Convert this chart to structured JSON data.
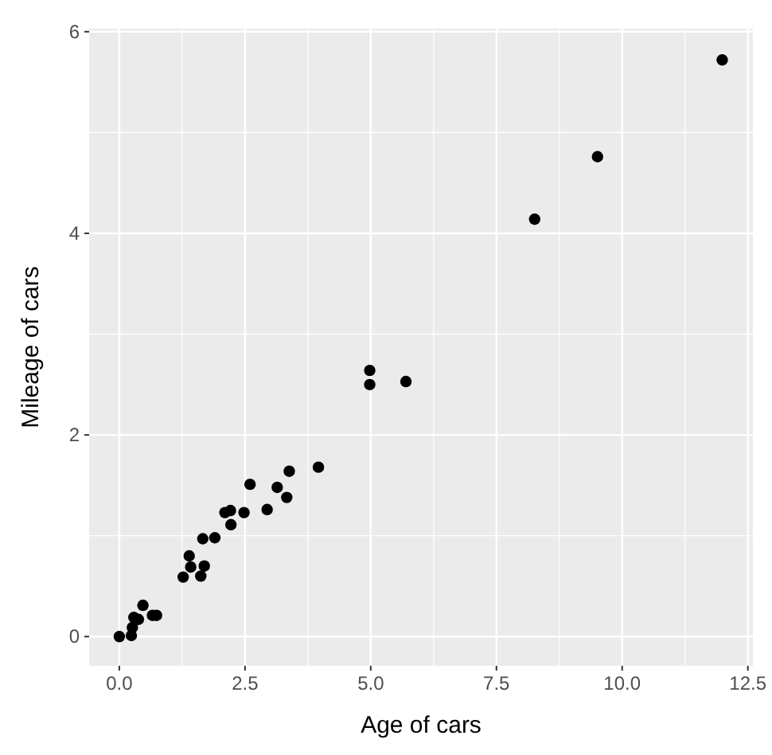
{
  "chart_data": {
    "type": "scatter",
    "xlabel": "Age of cars",
    "ylabel": "Mileage of cars",
    "x": [
      0,
      0.26,
      0.24,
      0.29,
      0.38,
      0.47,
      0.66,
      0.74,
      1.27,
      1.39,
      1.42,
      1.62,
      1.69,
      1.66,
      1.9,
      2.1,
      2.21,
      2.22,
      2.48,
      2.6,
      2.94,
      3.14,
      3.33,
      3.38,
      3.96,
      4.98,
      4.98,
      5.7,
      8.26,
      9.51,
      11.99
    ],
    "series": [
      {
        "color": "#000000",
        "values": [
          0,
          0.09,
          0.01,
          0.19,
          0.17,
          0.31,
          0.21,
          0.21,
          0.59,
          0.8,
          0.69,
          0.6,
          0.7,
          0.97,
          0.98,
          1.23,
          1.25,
          1.11,
          1.23,
          1.51,
          1.26,
          1.48,
          1.38,
          1.64,
          1.68,
          2.64,
          2.5,
          2.53,
          4.14,
          4.76,
          5.72
        ]
      }
    ],
    "xlim": [
      -0.6,
      12.6
    ],
    "ylim": [
      -0.29,
      6.03
    ],
    "xticks": [
      {
        "value": 0,
        "label": "0.0"
      },
      {
        "value": 2.5,
        "label": "2.5"
      },
      {
        "value": 5,
        "label": "5.0"
      },
      {
        "value": 7.5,
        "label": "7.5"
      },
      {
        "value": 10,
        "label": "10.0"
      },
      {
        "value": 12.5,
        "label": "12.5"
      }
    ],
    "yticks": [
      0,
      2,
      4,
      6
    ],
    "grid": true,
    "marker": "circle"
  }
}
